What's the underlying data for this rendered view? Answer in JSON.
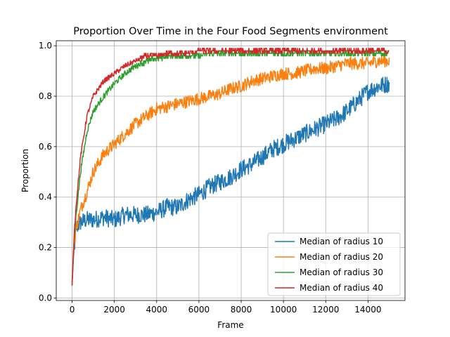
{
  "chart_data": {
    "type": "line",
    "title": "Proportion Over Time in the Four Food Segments environment",
    "xlabel": "Frame",
    "ylabel": "Proportion",
    "xlim": [
      -750,
      15750
    ],
    "ylim": [
      -0.01,
      1.02
    ],
    "xticks": [
      0,
      2000,
      4000,
      6000,
      8000,
      10000,
      12000,
      14000
    ],
    "yticks": [
      0.0,
      0.2,
      0.4,
      0.6,
      0.8,
      1.0
    ],
    "xtick_labels": [
      "0",
      "2000",
      "4000",
      "6000",
      "8000",
      "10000",
      "12000",
      "14000"
    ],
    "ytick_labels": [
      "0.0",
      "0.2",
      "0.4",
      "0.6",
      "0.8",
      "1.0"
    ],
    "grid": true,
    "legend_position": "bottom-right",
    "series": [
      {
        "name": "Median of radius 10",
        "color": "#1f77b4",
        "x": [
          0,
          100,
          200,
          400,
          700,
          1000,
          1500,
          2000,
          2500,
          3000,
          3500,
          4000,
          4500,
          5000,
          5500,
          6000,
          6500,
          7000,
          7500,
          8000,
          8500,
          9000,
          9500,
          10000,
          10500,
          11000,
          11500,
          12000,
          12500,
          13000,
          13500,
          14000,
          14500,
          15000
        ],
        "values": [
          0.06,
          0.2,
          0.28,
          0.3,
          0.31,
          0.31,
          0.32,
          0.31,
          0.33,
          0.33,
          0.33,
          0.34,
          0.36,
          0.36,
          0.39,
          0.41,
          0.44,
          0.46,
          0.48,
          0.51,
          0.53,
          0.56,
          0.59,
          0.61,
          0.63,
          0.65,
          0.67,
          0.69,
          0.71,
          0.74,
          0.78,
          0.82,
          0.84,
          0.85
        ],
        "noise": 0.035
      },
      {
        "name": "Median of radius 20",
        "color": "#ff7f0e",
        "x": [
          0,
          100,
          200,
          400,
          700,
          1000,
          1500,
          2000,
          2500,
          3000,
          3500,
          4000,
          4500,
          5000,
          5500,
          6000,
          6500,
          7000,
          7500,
          8000,
          8500,
          9000,
          9500,
          10000,
          10500,
          11000,
          11500,
          12000,
          12500,
          13000,
          13500,
          14000,
          14500,
          15000
        ],
        "values": [
          0.06,
          0.22,
          0.28,
          0.35,
          0.42,
          0.5,
          0.57,
          0.61,
          0.65,
          0.69,
          0.72,
          0.75,
          0.76,
          0.77,
          0.78,
          0.79,
          0.8,
          0.81,
          0.83,
          0.84,
          0.86,
          0.87,
          0.88,
          0.89,
          0.89,
          0.9,
          0.91,
          0.91,
          0.92,
          0.93,
          0.93,
          0.93,
          0.94,
          0.94
        ],
        "noise": 0.025
      },
      {
        "name": "Median of radius 30",
        "color": "#2ca02c",
        "x": [
          0,
          100,
          200,
          400,
          700,
          1000,
          1500,
          2000,
          2500,
          3000,
          3500,
          4000,
          4500,
          5000,
          5500,
          6000,
          6500,
          7000,
          7500,
          8000,
          8500,
          9000,
          9500,
          10000,
          10500,
          11000,
          11500,
          12000,
          12500,
          13000,
          13500,
          14000,
          14500,
          15000
        ],
        "values": [
          0.05,
          0.24,
          0.34,
          0.5,
          0.66,
          0.74,
          0.8,
          0.85,
          0.89,
          0.92,
          0.94,
          0.95,
          0.96,
          0.96,
          0.96,
          0.96,
          0.97,
          0.97,
          0.97,
          0.97,
          0.97,
          0.97,
          0.97,
          0.97,
          0.97,
          0.97,
          0.97,
          0.97,
          0.97,
          0.97,
          0.97,
          0.97,
          0.97,
          0.97
        ],
        "noise": 0.012
      },
      {
        "name": "Median of radius 40",
        "color": "#d62728",
        "x": [
          0,
          100,
          200,
          400,
          700,
          1000,
          1500,
          2000,
          2500,
          3000,
          3500,
          4000,
          4500,
          5000,
          5500,
          6000,
          6500,
          7000,
          7500,
          8000,
          8500,
          9000,
          9500,
          10000,
          10500,
          11000,
          11500,
          12000,
          12500,
          13000,
          13500,
          14000,
          14500,
          15000
        ],
        "values": [
          0.05,
          0.26,
          0.38,
          0.56,
          0.72,
          0.8,
          0.86,
          0.89,
          0.92,
          0.94,
          0.96,
          0.96,
          0.97,
          0.97,
          0.97,
          0.98,
          0.98,
          0.98,
          0.98,
          0.98,
          0.98,
          0.98,
          0.98,
          0.98,
          0.98,
          0.98,
          0.98,
          0.98,
          0.98,
          0.98,
          0.98,
          0.98,
          0.98,
          0.98
        ],
        "noise": 0.01
      }
    ]
  }
}
